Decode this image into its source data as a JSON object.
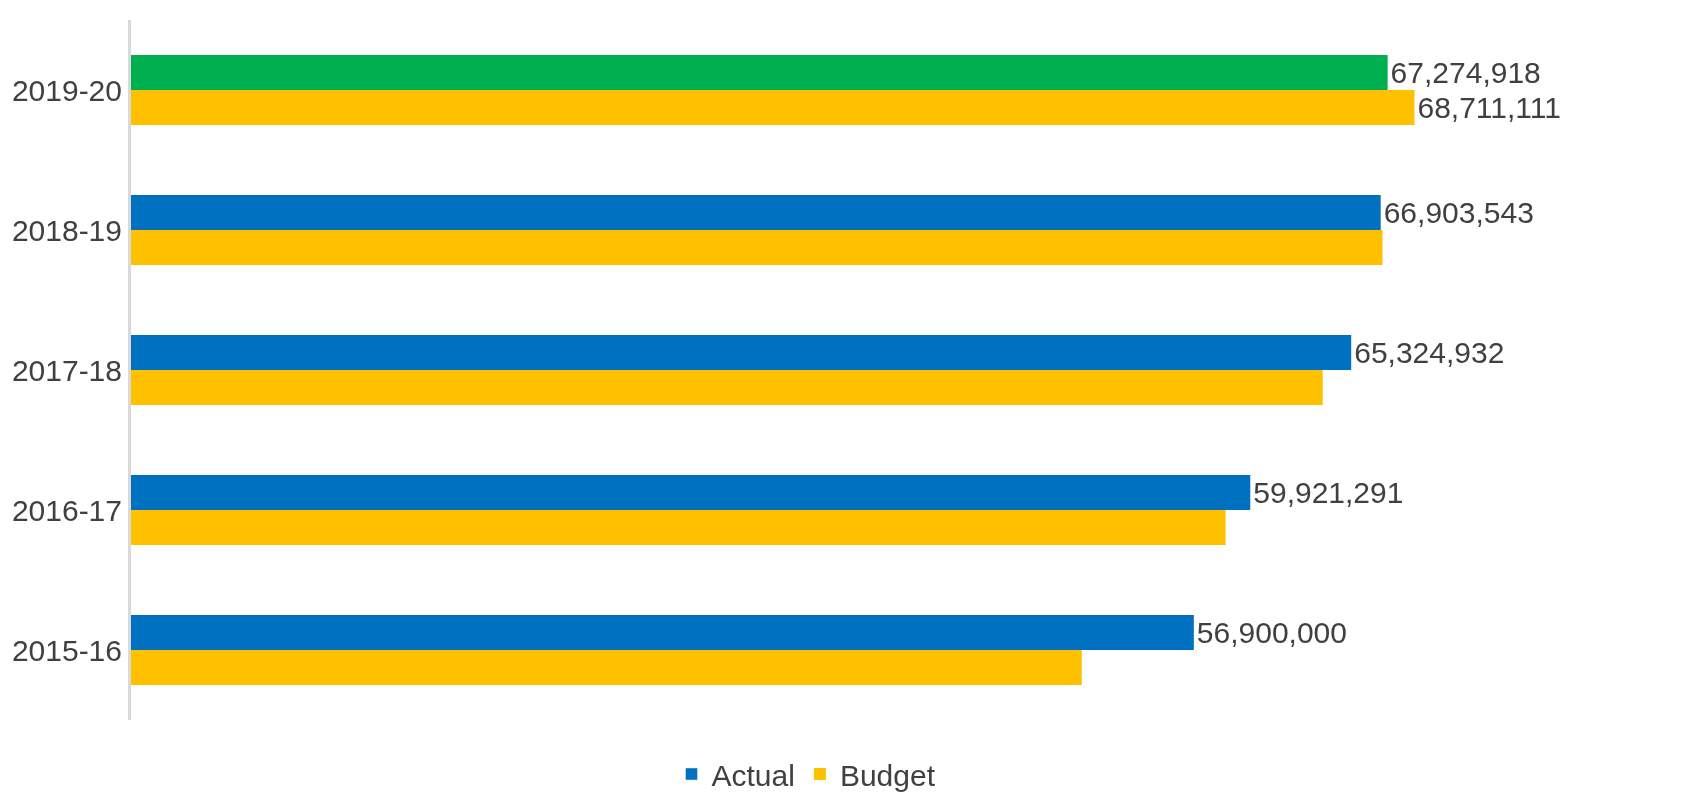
{
  "chart_data": {
    "type": "bar",
    "orientation": "horizontal",
    "categories": [
      "2019-20",
      "2018-19",
      "2017-18",
      "2016-17",
      "2015-16"
    ],
    "series": [
      {
        "name": "Actual",
        "color": "#0070c0",
        "colors": [
          "#00b050",
          "#0070c0",
          "#0070c0",
          "#0070c0",
          "#0070c0"
        ],
        "values": [
          67274918,
          66903543,
          65324932,
          59921291,
          56900000
        ],
        "value_labels": [
          "67,274,918",
          "66,903,543",
          "65,324,932",
          "59,921,291",
          "56,900,000"
        ]
      },
      {
        "name": "Budget",
        "color": "#ffc000",
        "values": [
          68711111,
          67000000,
          63800000,
          58600000,
          50900000
        ],
        "value_labels": [
          "68,711,111",
          null,
          null,
          null,
          null
        ]
      }
    ],
    "legend": "bottom"
  }
}
